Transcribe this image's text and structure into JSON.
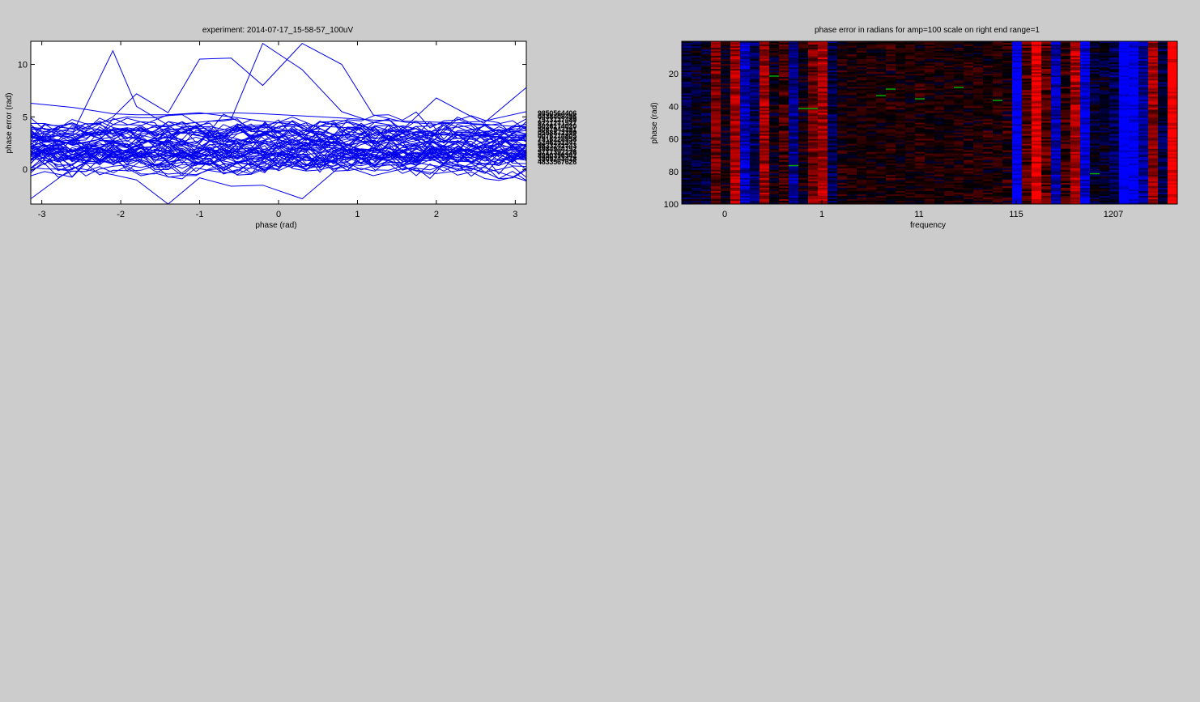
{
  "colors": {
    "background": "#cccccc",
    "line_series": "#0000ee",
    "heat_low": "#0000ff",
    "heat_mid": "#000000",
    "heat_high": "#ff0000",
    "marker": "#00aa00"
  },
  "chart_data": [
    {
      "type": "line",
      "title": "experiment: 2014-07-17_15-58-57_100uV",
      "xlabel": "phase (rad)",
      "ylabel": "phase error (rad)",
      "xlim": [
        -3.14,
        3.14
      ],
      "ylim": [
        -3.3,
        12.2
      ],
      "xticks": [
        -3,
        -2,
        -1,
        0,
        1,
        2,
        3
      ],
      "yticks": [
        0,
        5,
        10
      ],
      "series_count": 60,
      "grid": false,
      "legend": "right, outside axes",
      "highlight_series": [
        {
          "x": [
            -3.14,
            -2.6,
            -2.1,
            -1.8,
            -1.4,
            -1.0,
            -0.6,
            -0.2,
            0.3,
            0.8,
            1.2,
            1.6,
            2.0,
            2.6,
            3.14
          ],
          "y": [
            3.0,
            2.4,
            3.1,
            4.0,
            5.2,
            5.4,
            5.0,
            4.6,
            4.2,
            4.0,
            3.8,
            3.6,
            3.4,
            3.2,
            3.0
          ]
        },
        {
          "x": [
            -3.14,
            -2.6,
            -2.1,
            -1.8,
            -1.4,
            -1.0,
            -0.6,
            -0.2,
            0.3,
            0.8,
            1.2,
            1.6,
            2.0,
            2.6,
            3.14
          ],
          "y": [
            4.0,
            3.6,
            11.3,
            6.0,
            4.2,
            4.5,
            4.8,
            12.0,
            9.5,
            5.5,
            4.5,
            4.0,
            6.8,
            4.4,
            7.8
          ]
        },
        {
          "x": [
            -3.14,
            -2.6,
            -2.1,
            -1.8,
            -1.4,
            -1.0,
            -0.6,
            -0.2,
            0.3,
            0.8,
            1.2,
            1.6,
            2.0,
            2.6,
            3.14
          ],
          "y": [
            3.5,
            3.0,
            5.0,
            7.2,
            5.4,
            10.5,
            10.6,
            8.0,
            12.0,
            10.0,
            5.2,
            4.5,
            4.3,
            4.6,
            5.5
          ]
        },
        {
          "x": [
            -3.14,
            -2.6,
            -2.1,
            -1.8,
            -1.4,
            -1.0,
            -0.6,
            -0.2,
            0.3,
            0.8,
            1.2,
            1.6,
            2.0,
            2.6,
            3.14
          ],
          "y": [
            6.3,
            5.9,
            5.3,
            5.2,
            5.2,
            5.3,
            5.4,
            5.3,
            5.1,
            4.9,
            4.7,
            4.6,
            4.5,
            4.3,
            4.0
          ]
        },
        {
          "x": [
            -3.14,
            -2.6,
            -2.1,
            -1.8,
            -1.4,
            -1.0,
            -0.6,
            -0.2,
            0.3,
            0.8,
            1.2,
            1.6,
            2.0,
            2.6,
            3.14
          ],
          "y": [
            -2.8,
            0.2,
            -0.5,
            -1.0,
            -3.3,
            -0.8,
            -1.6,
            -1.5,
            -2.8,
            0.4,
            -0.6,
            0.1,
            -0.4,
            0.2,
            -1.1
          ]
        }
      ]
    },
    {
      "type": "heatmap",
      "title": "phase error in radians for amp=100 scale on right end range=1",
      "xlabel": "frequency",
      "ylabel": "phase (rad)",
      "xtick_labels": [
        "0",
        "1",
        "11",
        "115",
        "1207"
      ],
      "ytick_labels": [
        "20",
        "40",
        "60",
        "80",
        "100"
      ],
      "columns": 51,
      "rows": 100,
      "colormap": [
        "blue",
        "black",
        "red"
      ]
    }
  ]
}
